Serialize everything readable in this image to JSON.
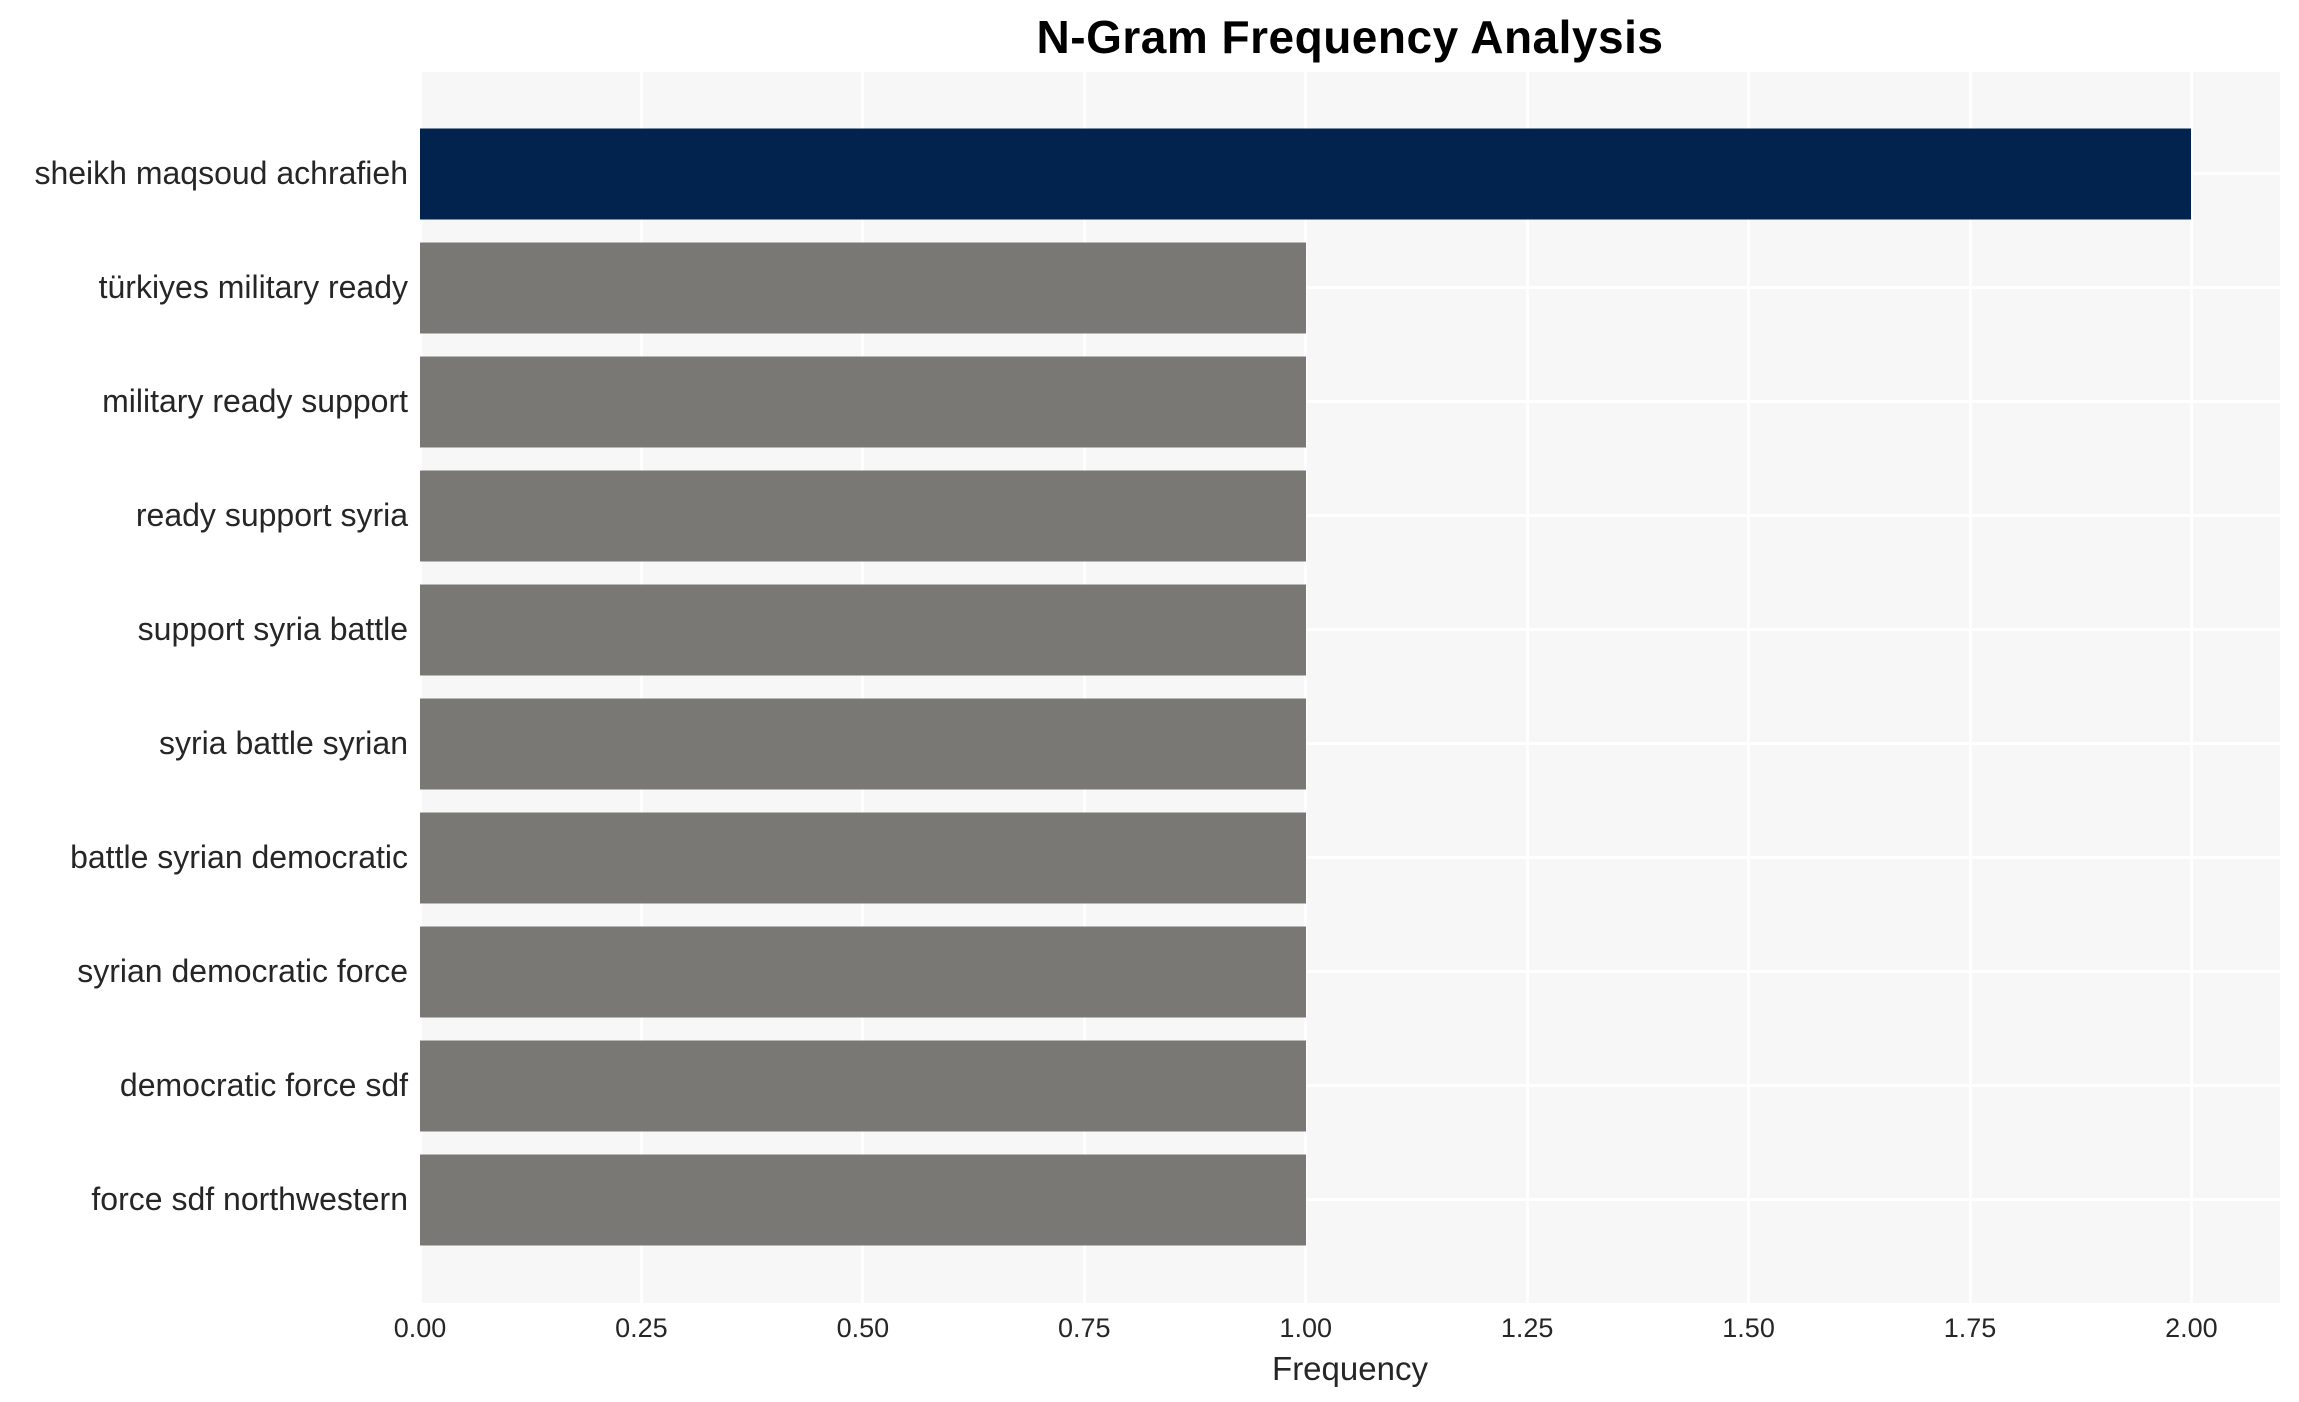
{
  "chart_data": {
    "type": "bar",
    "orientation": "horizontal",
    "title": "N-Gram Frequency Analysis",
    "xlabel": "Frequency",
    "ylabel": "",
    "categories": [
      "sheikh maqsoud achrafieh",
      "türkiyes military ready",
      "military ready support",
      "ready support syria",
      "support syria battle",
      "syria battle syrian",
      "battle syrian democratic",
      "syrian democratic force",
      "democratic force sdf",
      "force sdf northwestern"
    ],
    "values": [
      2,
      1,
      1,
      1,
      1,
      1,
      1,
      1,
      1,
      1
    ],
    "bar_colors": [
      "#01234d",
      "#7a7874",
      "#7a7874",
      "#7a7874",
      "#7a7874",
      "#7a7874",
      "#7a7874",
      "#7a7874",
      "#7a7874",
      "#7a7874"
    ],
    "xlim": [
      0,
      2.1
    ],
    "xticks": [
      0,
      0.25,
      0.5,
      0.75,
      1,
      1.25,
      1.5,
      1.75,
      2
    ],
    "xtick_labels": [
      "0.00",
      "0.25",
      "0.50",
      "0.75",
      "1.00",
      "1.25",
      "1.50",
      "1.75",
      "2.00"
    ],
    "grid": true,
    "legend": false,
    "colors": {
      "plot_bg": "#f7f7f7",
      "grid": "#ffffff",
      "text": "#262626",
      "title": "#000000"
    }
  }
}
